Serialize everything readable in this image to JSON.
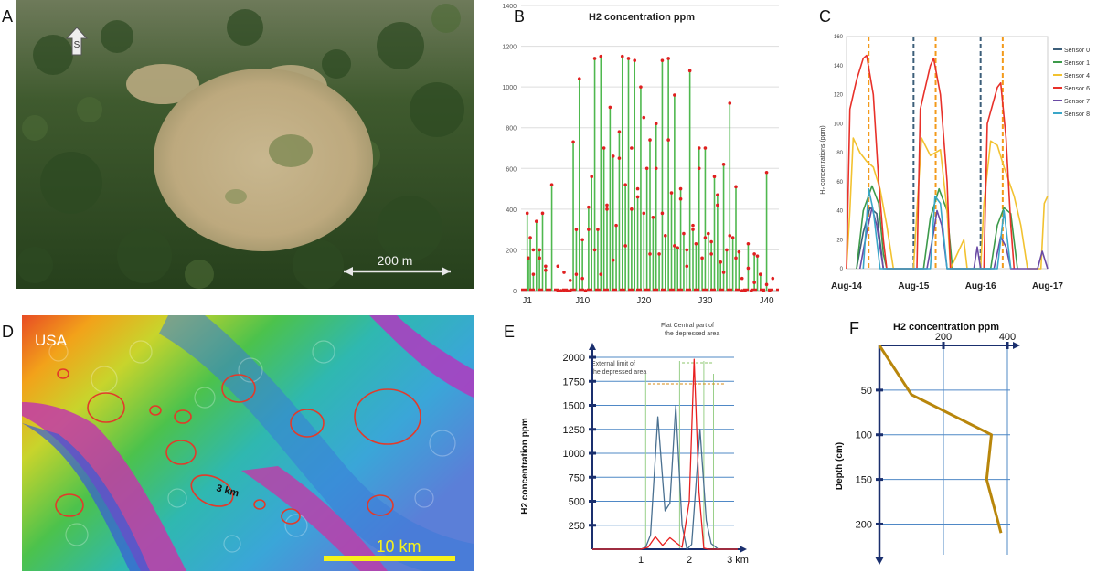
{
  "panel_labels": {
    "a": "A",
    "b": "B",
    "c": "C",
    "d": "D",
    "e": "E",
    "f": "F"
  },
  "panel_a": {
    "north_marker": "S",
    "scale_label": "200 m"
  },
  "panel_d": {
    "region_label": "USA",
    "feature_label": "3 km",
    "scale_label": "10 km"
  },
  "colors": {
    "green_bar": "#4fb84f",
    "red_point": "#e02020",
    "sensor0": "#3d5f7a",
    "sensor1": "#3c9a4a",
    "sensor4": "#f2c230",
    "sensor6": "#e8312a",
    "sensor7": "#6a4aa5",
    "sensor8": "#3aa6c8",
    "profile_blue": "#4a7090",
    "profile_red": "#e82020",
    "depth_line": "#b8860b",
    "vline_dark": "#3d5f7a",
    "vline_orange": "#f39a1b"
  },
  "chart_data": [
    {
      "id": "B",
      "type": "bar",
      "title": "H2 concentration  ppm",
      "ylim": [
        0,
        1400
      ],
      "yticks": [
        0,
        200,
        400,
        600,
        800,
        1000,
        1200,
        1400
      ],
      "xlim": [
        0,
        42
      ],
      "xticks": [
        {
          "x": 1,
          "label": "J1"
        },
        {
          "x": 10,
          "label": "J10"
        },
        {
          "x": 20,
          "label": "J20"
        },
        {
          "x": 30,
          "label": "J30"
        },
        {
          "x": 40,
          "label": "J40"
        }
      ],
      "x": [
        1,
        1.2,
        1.5,
        2,
        2.5,
        3,
        3.5,
        4,
        5,
        6,
        6.5,
        7,
        7.5,
        8,
        8.5,
        9,
        9.5,
        10,
        10.5,
        11,
        11.5,
        12,
        12.5,
        13,
        13.5,
        14,
        14.5,
        15,
        15.5,
        16,
        16.5,
        17,
        17.5,
        18,
        18.5,
        19,
        19.5,
        20,
        20.5,
        21,
        21.5,
        22,
        22.5,
        23,
        23.5,
        24,
        24.5,
        25,
        25.5,
        26,
        26.5,
        27,
        27.5,
        28,
        28.5,
        29,
        29.5,
        30,
        30.5,
        31,
        31.5,
        32,
        32.5,
        33,
        33.5,
        34,
        34.5,
        35,
        35.5,
        36,
        36.5,
        37,
        37.5,
        38,
        38.5,
        39,
        39.5,
        40,
        40.5
      ],
      "values": [
        380,
        160,
        260,
        80,
        340,
        200,
        380,
        120,
        520,
        0,
        0,
        0,
        0,
        0,
        730,
        300,
        1040,
        250,
        0,
        410,
        560,
        1140,
        300,
        1150,
        700,
        420,
        900,
        660,
        320,
        780,
        1150,
        520,
        1140,
        400,
        1130,
        460,
        1000,
        380,
        600,
        740,
        360,
        820,
        180,
        1130,
        270,
        1140,
        480,
        960,
        210,
        500,
        280,
        200,
        1080,
        300,
        230,
        700,
        160,
        700,
        280,
        240,
        560,
        470,
        140,
        620,
        200,
        920,
        260,
        510,
        190,
        0,
        0,
        230,
        0,
        180,
        170,
        80,
        0,
        580,
        0
      ],
      "markers": [
        [
          2,
          200
        ],
        [
          3,
          160
        ],
        [
          4,
          100
        ],
        [
          6,
          120
        ],
        [
          7,
          90
        ],
        [
          8,
          50
        ],
        [
          9,
          80
        ],
        [
          10,
          60
        ],
        [
          11,
          300
        ],
        [
          12,
          200
        ],
        [
          13,
          80
        ],
        [
          14,
          400
        ],
        [
          15,
          150
        ],
        [
          16,
          650
        ],
        [
          17,
          220
        ],
        [
          18,
          700
        ],
        [
          19,
          500
        ],
        [
          20,
          850
        ],
        [
          21,
          180
        ],
        [
          22,
          600
        ],
        [
          23,
          380
        ],
        [
          24,
          740
        ],
        [
          25,
          220
        ],
        [
          26,
          450
        ],
        [
          27,
          120
        ],
        [
          28,
          320
        ],
        [
          29,
          600
        ],
        [
          30,
          260
        ],
        [
          31,
          180
        ],
        [
          32,
          420
        ],
        [
          33,
          90
        ],
        [
          34,
          270
        ],
        [
          35,
          160
        ],
        [
          36,
          60
        ],
        [
          37,
          110
        ],
        [
          38,
          40
        ],
        [
          39,
          80
        ],
        [
          40,
          30
        ],
        [
          41,
          60
        ]
      ]
    },
    {
      "id": "C",
      "type": "line",
      "ylabel": "H₂ concentrations (ppm)",
      "ylim": [
        0,
        160
      ],
      "yticks": [
        0,
        20,
        40,
        60,
        80,
        100,
        120,
        140,
        160
      ],
      "xlim": [
        0,
        3
      ],
      "xticks": [
        {
          "x": 0,
          "label": "Aug-14"
        },
        {
          "x": 1,
          "label": "Aug-15"
        },
        {
          "x": 2,
          "label": "Aug-16"
        },
        {
          "x": 3,
          "label": "Aug-17"
        }
      ],
      "orange_lines": [
        0.33,
        1.33,
        2.33
      ],
      "dark_lines": [
        1.0,
        2.0
      ],
      "series": [
        {
          "name": "Sensor 0",
          "color_key": "sensor0",
          "points": [
            [
              0.15,
              0
            ],
            [
              0.25,
              25
            ],
            [
              0.35,
              42
            ],
            [
              0.45,
              38
            ],
            [
              0.55,
              0
            ]
          ]
        },
        {
          "name": "Sensor 1",
          "color_key": "sensor1",
          "points": [
            [
              0.15,
              0
            ],
            [
              0.25,
              40
            ],
            [
              0.38,
              57
            ],
            [
              0.48,
              45
            ],
            [
              0.55,
              10
            ],
            [
              0.6,
              0
            ],
            [
              1.15,
              0
            ],
            [
              1.25,
              35
            ],
            [
              1.38,
              55
            ],
            [
              1.5,
              40
            ],
            [
              1.58,
              0
            ],
            [
              2.15,
              0
            ],
            [
              2.25,
              30
            ],
            [
              2.35,
              42
            ],
            [
              2.45,
              38
            ],
            [
              2.55,
              0
            ]
          ]
        },
        {
          "name": "Sensor 4",
          "color_key": "sensor4",
          "points": [
            [
              0.0,
              0
            ],
            [
              0.05,
              40
            ],
            [
              0.1,
              90
            ],
            [
              0.2,
              80
            ],
            [
              0.3,
              74
            ],
            [
              0.4,
              70
            ],
            [
              0.5,
              55
            ],
            [
              0.6,
              30
            ],
            [
              0.7,
              0
            ],
            [
              1.0,
              0
            ],
            [
              1.05,
              40
            ],
            [
              1.12,
              90
            ],
            [
              1.25,
              78
            ],
            [
              1.4,
              82
            ],
            [
              1.5,
              40
            ],
            [
              1.55,
              0
            ],
            [
              1.75,
              20
            ],
            [
              1.8,
              0
            ],
            [
              2.0,
              0
            ],
            [
              2.05,
              45
            ],
            [
              2.15,
              88
            ],
            [
              2.25,
              85
            ],
            [
              2.35,
              70
            ],
            [
              2.5,
              50
            ],
            [
              2.6,
              30
            ],
            [
              2.7,
              0
            ],
            [
              2.9,
              0
            ],
            [
              2.95,
              45
            ],
            [
              3.0,
              50
            ]
          ]
        },
        {
          "name": "Sensor 6",
          "color_key": "sensor6",
          "points": [
            [
              0.0,
              0
            ],
            [
              0.05,
              110
            ],
            [
              0.15,
              130
            ],
            [
              0.25,
              145
            ],
            [
              0.3,
              147
            ],
            [
              0.4,
              120
            ],
            [
              0.48,
              60
            ],
            [
              0.55,
              20
            ],
            [
              0.6,
              0
            ],
            [
              1.05,
              0
            ],
            [
              1.1,
              110
            ],
            [
              1.25,
              140
            ],
            [
              1.3,
              145
            ],
            [
              1.4,
              120
            ],
            [
              1.5,
              60
            ],
            [
              1.55,
              0
            ],
            [
              2.05,
              0
            ],
            [
              2.1,
              100
            ],
            [
              2.25,
              125
            ],
            [
              2.3,
              128
            ],
            [
              2.38,
              90
            ],
            [
              2.45,
              30
            ],
            [
              2.5,
              0
            ]
          ]
        },
        {
          "name": "Sensor 7",
          "color_key": "sensor7",
          "points": [
            [
              0.2,
              0
            ],
            [
              0.3,
              25
            ],
            [
              0.38,
              42
            ],
            [
              0.45,
              30
            ],
            [
              0.55,
              0
            ],
            [
              1.2,
              0
            ],
            [
              1.3,
              25
            ],
            [
              1.35,
              40
            ],
            [
              1.42,
              30
            ],
            [
              1.5,
              0
            ],
            [
              1.9,
              0
            ],
            [
              1.95,
              15
            ],
            [
              2.0,
              0
            ],
            [
              2.2,
              0
            ],
            [
              2.3,
              22
            ],
            [
              2.38,
              15
            ],
            [
              2.45,
              0
            ],
            [
              2.85,
              0
            ],
            [
              2.92,
              12
            ],
            [
              3.0,
              0
            ]
          ]
        },
        {
          "name": "Sensor 8",
          "color_key": "sensor8",
          "points": [
            [
              0.25,
              0
            ],
            [
              0.33,
              55
            ],
            [
              0.4,
              40
            ],
            [
              0.5,
              0
            ],
            [
              1.25,
              0
            ],
            [
              1.32,
              50
            ],
            [
              1.4,
              45
            ],
            [
              1.5,
              0
            ],
            [
              2.25,
              0
            ],
            [
              2.35,
              40
            ],
            [
              2.45,
              0
            ]
          ]
        }
      ]
    },
    {
      "id": "E",
      "type": "line",
      "ylabel": "H2 concentration  ppm",
      "ylim": [
        0,
        2000
      ],
      "yticks": [
        250,
        500,
        750,
        1000,
        1250,
        1500,
        1750,
        2000
      ],
      "xlim": [
        0,
        3
      ],
      "xticks": [
        {
          "x": 1,
          "label": "1"
        },
        {
          "x": 2,
          "label": "2"
        },
        {
          "x": 3,
          "label": "3 km"
        }
      ],
      "annotations": [
        {
          "text": "Flat Central part of"
        },
        {
          "text": "the depressed area"
        },
        {
          "text": "External limit of"
        },
        {
          "text": "the depressed area"
        }
      ],
      "series": [
        {
          "color_key": "profile_blue",
          "points": [
            [
              0,
              0
            ],
            [
              1.0,
              0
            ],
            [
              1.1,
              20
            ],
            [
              1.2,
              150
            ],
            [
              1.35,
              1380
            ],
            [
              1.5,
              400
            ],
            [
              1.6,
              480
            ],
            [
              1.72,
              1500
            ],
            [
              1.85,
              250
            ],
            [
              1.95,
              0
            ],
            [
              2.05,
              50
            ],
            [
              2.22,
              1250
            ],
            [
              2.35,
              300
            ],
            [
              2.45,
              60
            ],
            [
              2.6,
              0
            ],
            [
              3.0,
              0
            ]
          ]
        },
        {
          "color_key": "profile_red",
          "points": [
            [
              0,
              0
            ],
            [
              1.0,
              0
            ],
            [
              1.15,
              20
            ],
            [
              1.3,
              130
            ],
            [
              1.45,
              40
            ],
            [
              1.6,
              120
            ],
            [
              1.75,
              60
            ],
            [
              1.85,
              20
            ],
            [
              2.0,
              500
            ],
            [
              2.1,
              1980
            ],
            [
              2.2,
              600
            ],
            [
              2.3,
              10
            ],
            [
              2.4,
              0
            ],
            [
              3.0,
              0
            ]
          ]
        }
      ]
    },
    {
      "id": "F",
      "type": "line",
      "title": "H2 concentration  ppm",
      "ylabel": "Depth (cm)",
      "xlim": [
        0,
        400
      ],
      "xticks": [
        200,
        400
      ],
      "ylim": [
        0,
        220
      ],
      "yticks": [
        50,
        100,
        150,
        200
      ],
      "series": [
        {
          "color_key": "depth_line",
          "points": [
            [
              0,
              0
            ],
            [
              100,
              55
            ],
            [
              350,
              100
            ],
            [
              335,
              150
            ],
            [
              380,
              210
            ]
          ]
        }
      ]
    }
  ]
}
